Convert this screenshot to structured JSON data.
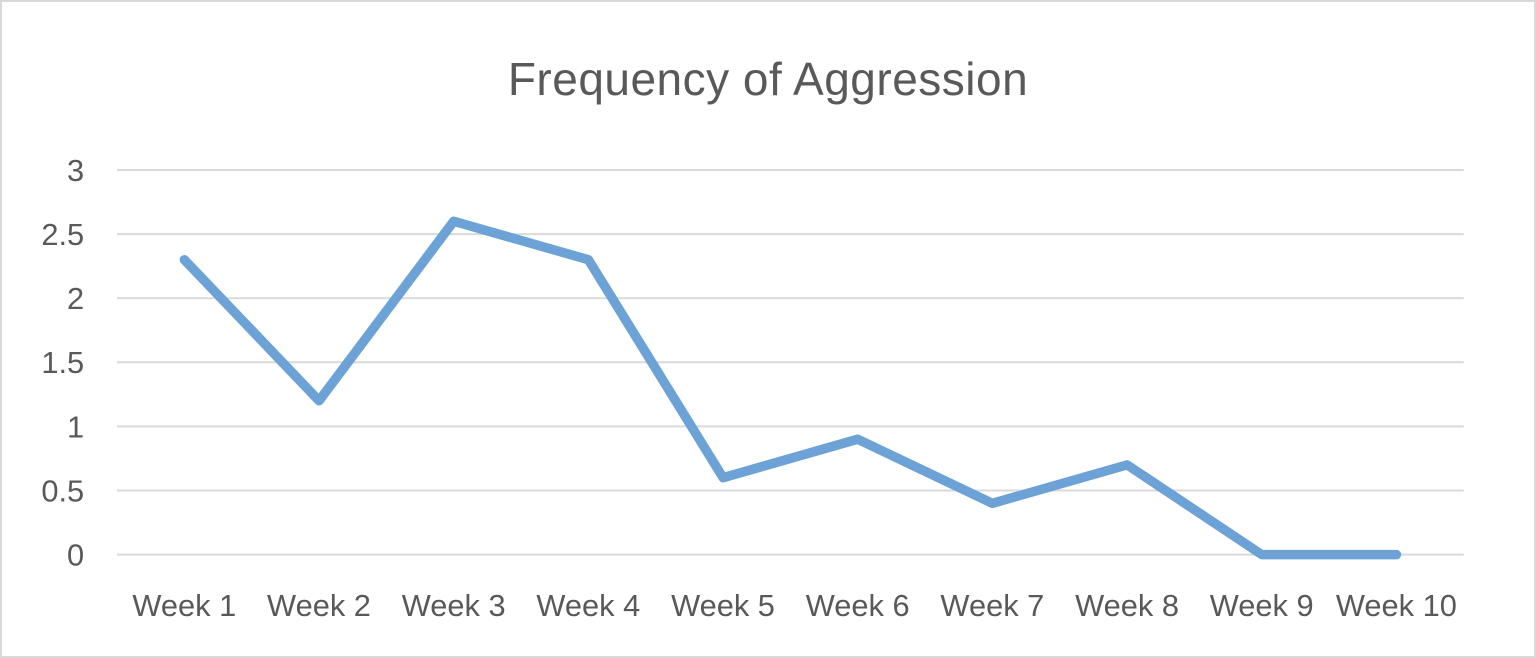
{
  "chart_data": {
    "type": "line",
    "title": "Frequency of Aggression",
    "categories": [
      "Week 1",
      "Week 2",
      "Week 3",
      "Week 4",
      "Week 5",
      "Week 6",
      "Week 7",
      "Week 8",
      "Week 9",
      "Week 10"
    ],
    "series": [
      {
        "name": "Frequency of Aggression",
        "values": [
          2.3,
          1.2,
          2.6,
          2.3,
          0.6,
          0.9,
          0.4,
          0.7,
          0,
          0
        ]
      }
    ],
    "xlabel": "",
    "ylabel": "",
    "ylim": [
      0,
      3
    ],
    "ytick_step": 0.5,
    "ytick_labels": [
      "3",
      "2.5",
      "2",
      "1.5",
      "1",
      "0.5",
      "0"
    ],
    "grid": true,
    "legend_position": "none",
    "colors": {
      "line": "#6CA2D5",
      "grid": "#d9d9d9",
      "text": "#595959",
      "title": "#595959",
      "frame_border": "#d9d9d9",
      "background": "#ffffff"
    }
  }
}
